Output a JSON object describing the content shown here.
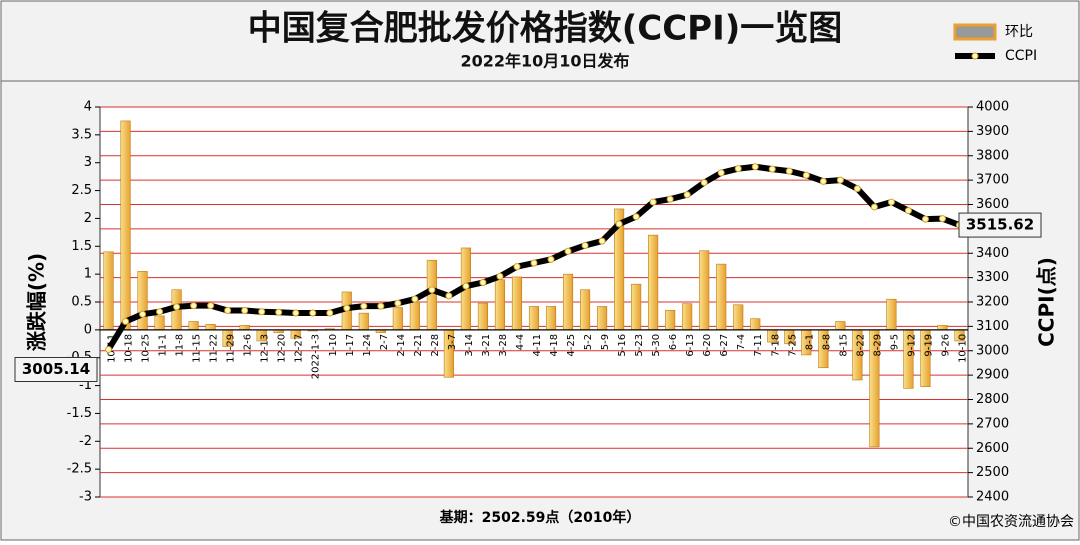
{
  "chart_data": {
    "type": "combo",
    "title": "中国复合肥批发价格指数(CCPI)一览图",
    "subtitle": "2022年10月10日发布",
    "y_label": "涨跌幅(%)",
    "y2_label": "CCPI(点)",
    "footnote": "基期：2502.59点（2010年）",
    "source": "©中国农资流通协会",
    "categories": [
      "10-11",
      "10-18",
      "10-25",
      "11-1",
      "11-8",
      "11-15",
      "11-22",
      "11-29",
      "12-6",
      "12-13",
      "12-20",
      "12-27",
      "2022-1-3",
      "1-10",
      "1-17",
      "1-24",
      "2-7",
      "2-14",
      "2-21",
      "2-28",
      "3-7",
      "3-14",
      "3-21",
      "3-28",
      "4-4",
      "4-11",
      "4-18",
      "4-25",
      "5-2",
      "5-9",
      "5-16",
      "5-23",
      "5-30",
      "6-6",
      "6-13",
      "6-20",
      "6-27",
      "7-4",
      "7-11",
      "7-18",
      "7-25",
      "8-1",
      "8-8",
      "8-15",
      "8-22",
      "8-29",
      "9-5",
      "9-12",
      "9-19",
      "9-26",
      "10-10"
    ],
    "series": [
      {
        "name": "环比",
        "type": "bar",
        "color": "#e8a030",
        "values": [
          1.4,
          3.75,
          1.05,
          0.25,
          0.72,
          0.15,
          0.1,
          -0.3,
          0.08,
          -0.2,
          -0.05,
          -0.15,
          -0.02,
          0.02,
          0.68,
          0.3,
          -0.05,
          0.4,
          0.5,
          1.25,
          -0.85,
          1.47,
          0.48,
          0.9,
          0.95,
          0.42,
          0.42,
          1.0,
          0.72,
          0.42,
          2.17,
          0.82,
          1.7,
          0.35,
          0.47,
          1.42,
          1.18,
          0.45,
          0.2,
          -0.22,
          -0.25,
          -0.45,
          -0.68,
          0.15,
          -0.9,
          -2.1,
          0.55,
          -1.05,
          -1.02,
          0.08,
          -0.2
        ]
      },
      {
        "name": "CCPI",
        "type": "line",
        "axis": "y2",
        "color": "#000000",
        "values": [
          3005.14,
          3120,
          3150,
          3160,
          3180,
          3185,
          3185,
          3165,
          3165,
          3160,
          3158,
          3155,
          3155,
          3155,
          3175,
          3183,
          3183,
          3195,
          3212,
          3250,
          3225,
          3265,
          3280,
          3305,
          3345,
          3360,
          3375,
          3408,
          3432,
          3450,
          3520,
          3550,
          3610,
          3622,
          3640,
          3690,
          3730,
          3747,
          3755,
          3745,
          3737,
          3720,
          3695,
          3700,
          3665,
          3590,
          3610,
          3575,
          3540,
          3542,
          3515.62
        ]
      }
    ],
    "ylim": [
      -3,
      4
    ],
    "yticks": [
      -3,
      -2.5,
      -2,
      -1.5,
      -1,
      -0.5,
      0,
      0.5,
      1,
      1.5,
      2,
      2.5,
      3,
      3.5,
      4
    ],
    "y2lim": [
      2400,
      4000
    ],
    "y2ticks": [
      2400,
      2500,
      2600,
      2700,
      2800,
      2900,
      3000,
      3100,
      3200,
      3300,
      3400,
      3500,
      3600,
      3700,
      3800,
      3900,
      4000
    ],
    "grid": true,
    "grid_color": "#d93030",
    "legend": "top-right"
  }
}
